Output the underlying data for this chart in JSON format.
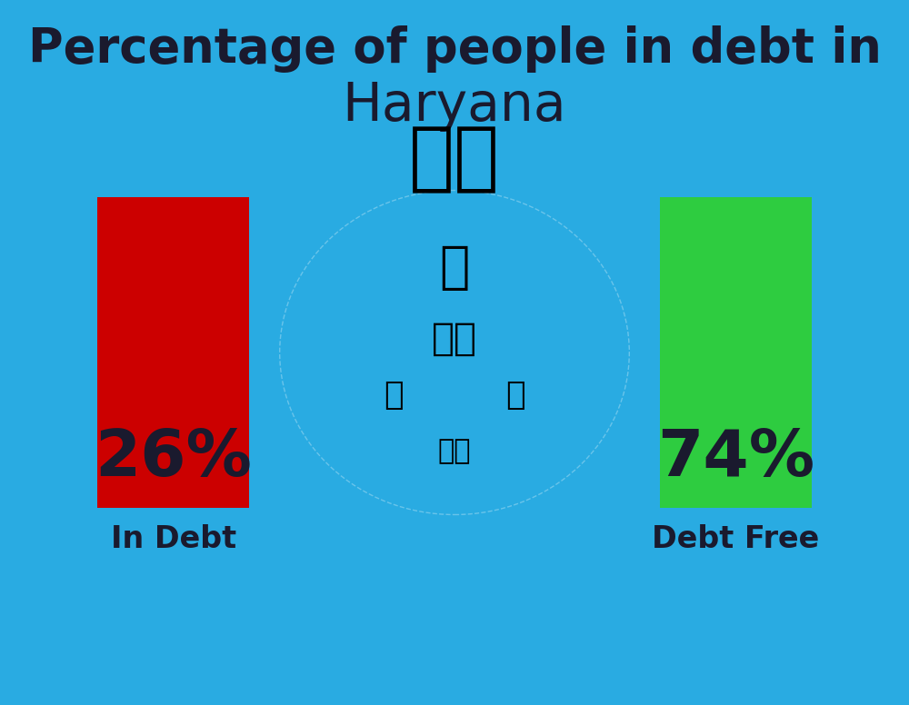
{
  "background_color": "#29ABE2",
  "title_line1": "Percentage of people in debt in",
  "title_line2": "Haryana",
  "title_color": "#1a1a2e",
  "title_fontsize": 38,
  "title2_fontsize": 42,
  "in_debt_pct": 26,
  "debt_free_pct": 74,
  "in_debt_label": "In Debt",
  "debt_free_label": "Debt Free",
  "bar_red_color": "#CC0000",
  "bar_green_color": "#2ECC40",
  "bar_text_color": "#1a1a2e",
  "label_color": "#1a1a2e",
  "bar_fontsize": 52,
  "label_fontsize": 24,
  "flag_emoji": "🇮🇳",
  "flag_fontsize": 60
}
